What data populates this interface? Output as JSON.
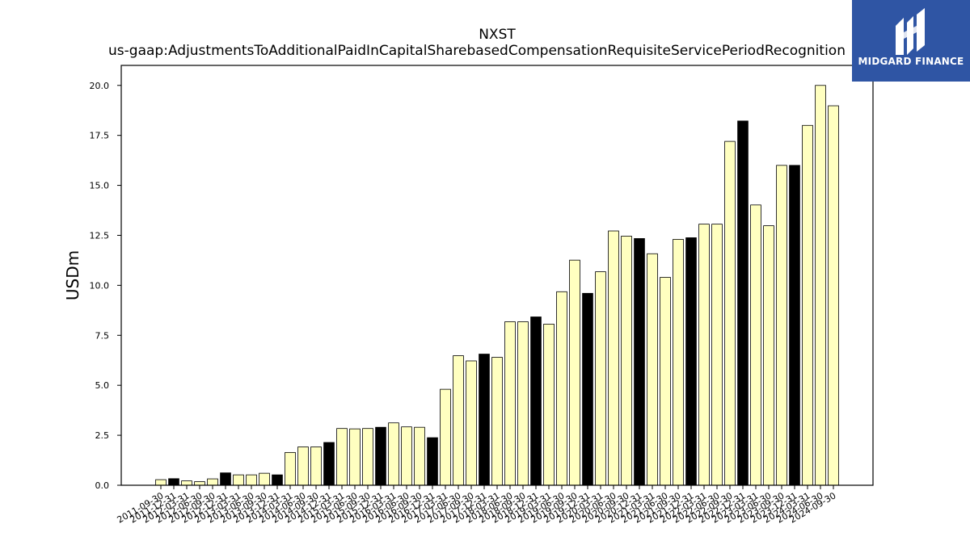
{
  "logo": {
    "text": "MIDGARD FINANCE",
    "icon": "midgard-m-icon",
    "color": "#2f55a4"
  },
  "chart_data": {
    "type": "bar",
    "title": "NXST",
    "subtitle": "us-gaap:AdjustmentsToAdditionalPaidInCapitalSharebasedCompensationRequisiteServicePeriodRecognition",
    "ylabel": "USDm",
    "xlabel": "",
    "ylim": [
      0,
      21
    ],
    "yticks": [
      "0.0",
      "2.5",
      "5.0",
      "7.5",
      "10.0",
      "12.5",
      "15.0",
      "17.5",
      "20.0"
    ],
    "colors": {
      "quarter": "#ffffc0",
      "year_end": "#000000",
      "edge": "#000000"
    },
    "categories": [
      "2011-09-30",
      "2011-12-31",
      "2012-03-31",
      "2012-06-30",
      "2012-09-30",
      "2012-12-31",
      "2013-03-31",
      "2013-06-30",
      "2013-09-30",
      "2013-12-31",
      "2014-03-31",
      "2014-06-30",
      "2014-09-30",
      "2014-12-31",
      "2015-03-31",
      "2015-06-30",
      "2015-09-30",
      "2015-12-31",
      "2016-03-31",
      "2016-06-30",
      "2016-09-30",
      "2016-12-31",
      "2017-03-31",
      "2017-06-30",
      "2017-09-30",
      "2017-12-31",
      "2018-03-31",
      "2018-06-30",
      "2018-09-30",
      "2018-12-31",
      "2019-03-31",
      "2019-06-30",
      "2019-09-30",
      "2019-12-31",
      "2020-03-31",
      "2020-06-30",
      "2020-09-30",
      "2020-12-31",
      "2021-03-31",
      "2021-06-30",
      "2021-09-30",
      "2021-12-31",
      "2022-03-31",
      "2022-06-30",
      "2022-09-30",
      "2022-12-31",
      "2023-03-31",
      "2023-06-30",
      "2023-09-30",
      "2023-12-31",
      "2024-03-31",
      "2024-06-30",
      "2024-09-30"
    ],
    "values": [
      0.28,
      0.33,
      0.22,
      0.18,
      0.32,
      0.62,
      0.52,
      0.52,
      0.6,
      0.52,
      1.64,
      1.92,
      1.92,
      2.14,
      2.84,
      2.82,
      2.84,
      2.9,
      3.12,
      2.92,
      2.9,
      2.38,
      4.8,
      6.48,
      6.22,
      6.56,
      6.4,
      8.18,
      8.18,
      8.42,
      8.06,
      9.68,
      11.26,
      9.6,
      10.68,
      12.72,
      12.46,
      12.34,
      11.58,
      10.4,
      12.3,
      12.38,
      13.06,
      13.06,
      17.2,
      18.22,
      14.02,
      12.98,
      16.0,
      16.0,
      18.0,
      20.0,
      18.98
    ],
    "highlight": [
      false,
      true,
      false,
      false,
      false,
      true,
      false,
      false,
      false,
      true,
      false,
      false,
      false,
      true,
      false,
      false,
      false,
      true,
      false,
      false,
      false,
      true,
      false,
      false,
      false,
      true,
      false,
      false,
      false,
      true,
      false,
      false,
      false,
      true,
      false,
      false,
      false,
      true,
      false,
      false,
      false,
      true,
      false,
      false,
      false,
      true,
      false,
      false,
      false,
      true,
      false,
      false,
      false
    ],
    "grid": false,
    "legend": "none"
  }
}
